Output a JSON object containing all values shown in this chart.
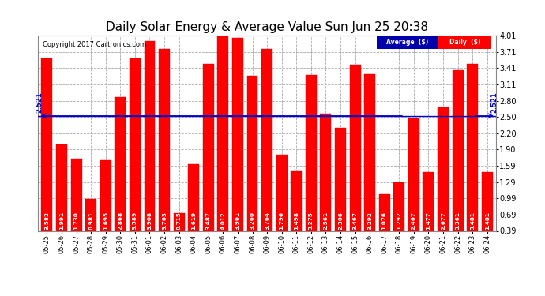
{
  "title": "Daily Solar Energy & Average Value Sun Jun 25 20:38",
  "copyright": "Copyright 2017 Cartronics.com",
  "categories": [
    "05-25",
    "05-26",
    "05-27",
    "05-28",
    "05-29",
    "05-30",
    "05-31",
    "06-01",
    "06-02",
    "06-03",
    "06-04",
    "06-05",
    "06-06",
    "06-07",
    "06-08",
    "06-09",
    "06-10",
    "06-11",
    "06-12",
    "06-13",
    "06-14",
    "06-15",
    "06-16",
    "06-17",
    "06-18",
    "06-19",
    "06-20",
    "06-21",
    "06-22",
    "06-23",
    "06-24"
  ],
  "values": [
    3.582,
    1.991,
    1.73,
    0.981,
    1.695,
    2.868,
    3.589,
    3.908,
    3.763,
    0.715,
    1.619,
    3.487,
    4.012,
    3.961,
    3.26,
    3.764,
    1.796,
    1.498,
    3.275,
    2.561,
    2.306,
    3.467,
    3.292,
    1.076,
    1.292,
    2.467,
    1.477,
    2.677,
    3.361,
    3.481,
    1.481
  ],
  "average": 2.521,
  "bar_color": "#FF0000",
  "avg_line_color": "#0000CC",
  "background_color": "#FFFFFF",
  "plot_bg_color": "#FFFFFF",
  "grid_color": "#AAAAAA",
  "ylim": [
    0.39,
    4.01
  ],
  "yticks": [
    0.39,
    0.69,
    0.99,
    1.29,
    1.59,
    1.9,
    2.2,
    2.5,
    2.8,
    3.11,
    3.41,
    3.71,
    4.01
  ],
  "title_fontsize": 11,
  "bar_label_fontsize": 5.2,
  "legend_avg_color": "#0000AA",
  "legend_daily_color": "#FF0000"
}
